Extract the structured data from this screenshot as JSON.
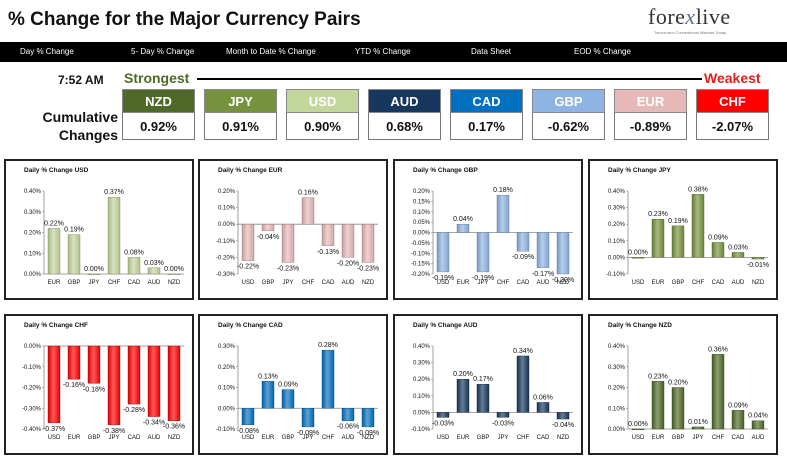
{
  "header": {
    "title": "% Change for the Major Currency Pairs",
    "logo": {
      "text_left": "fore",
      "text_x": "x",
      "text_right": "live",
      "tagline": "Tomorrow's Conventional Wisdom Today"
    }
  },
  "nav": [
    {
      "label": "Day % Change",
      "active": true
    },
    {
      "label": "5- Day % Change",
      "active": false
    },
    {
      "label": "Month to Date % Change",
      "active": false
    },
    {
      "label": "YTD % Change",
      "active": false
    },
    {
      "label": "Data Sheet",
      "active": false
    },
    {
      "label": "EOD % Change",
      "active": false
    }
  ],
  "time": "7:52 AM",
  "strongest_label": "Strongest",
  "weakest_label": "Weakest",
  "cumulative_label_1": "Cumulative",
  "cumulative_label_2": "Changes",
  "currencies": [
    {
      "code": "NZD",
      "value": "0.92%",
      "color": "#4f6a28"
    },
    {
      "code": "JPY",
      "value": "0.91%",
      "color": "#76923c"
    },
    {
      "code": "USD",
      "value": "0.90%",
      "color": "#c3d69b"
    },
    {
      "code": "AUD",
      "value": "0.68%",
      "color": "#17375e"
    },
    {
      "code": "CAD",
      "value": "0.17%",
      "color": "#0070c0"
    },
    {
      "code": "GBP",
      "value": "-0.62%",
      "color": "#8eb4e3"
    },
    {
      "code": "EUR",
      "value": "-0.89%",
      "color": "#e6b9b8"
    },
    {
      "code": "CHF",
      "value": "-2.07%",
      "color": "#ff0000"
    }
  ],
  "chart_data": [
    {
      "type": "bar",
      "title": "Daily % Change USD",
      "categories": [
        "EUR",
        "GBP",
        "JPY",
        "CHF",
        "CAD",
        "AUD",
        "NZD"
      ],
      "values": [
        0.22,
        0.19,
        0.0,
        0.37,
        0.08,
        0.03,
        0.0
      ],
      "labels": [
        "0.22%",
        "0.19%",
        "0.00%",
        "0.37%",
        "0.08%",
        "0.03%",
        "0.00%"
      ],
      "ylim": [
        0,
        0.4
      ],
      "ticks": [
        "0.40%",
        "0.30%",
        "0.20%",
        "0.10%",
        "0.00%"
      ],
      "color": "#c3d69b"
    },
    {
      "type": "bar",
      "title": "Daily % Change EUR",
      "categories": [
        "USD",
        "GBP",
        "JPY",
        "CHF",
        "CAD",
        "AUD",
        "NZD"
      ],
      "values": [
        -0.22,
        -0.04,
        -0.23,
        0.16,
        -0.13,
        -0.2,
        -0.23
      ],
      "labels": [
        "-0.22%",
        "-0.04%",
        "-0.23%",
        "0.16%",
        "-0.13%",
        "-0.20%",
        "-0.23%"
      ],
      "ylim": [
        -0.3,
        0.2
      ],
      "ticks": [
        "0.20%",
        "0.10%",
        "0.00%",
        "-0.10%",
        "-0.20%",
        "-0.30%"
      ],
      "color": "#e6b9b8"
    },
    {
      "type": "bar",
      "title": "Daily % Change GBP",
      "categories": [
        "USD",
        "EUR",
        "JPY",
        "CHF",
        "CAD",
        "AUD",
        "NZD"
      ],
      "values": [
        -0.19,
        0.04,
        -0.19,
        0.18,
        -0.09,
        -0.17,
        -0.2
      ],
      "labels": [
        "-0.19%",
        "0.04%",
        "-0.19%",
        "0.18%",
        "-0.09%",
        "-0.17%",
        "-0.20%"
      ],
      "ylim": [
        -0.2,
        0.2
      ],
      "ticks": [
        "0.20%",
        "0.15%",
        "0.10%",
        "0.05%",
        "0.00%",
        "-0.05%",
        "-0.10%",
        "-0.15%",
        "-0.20%"
      ],
      "color": "#8eb4e3"
    },
    {
      "type": "bar",
      "title": "Daily % Change JPY",
      "categories": [
        "USD",
        "EUR",
        "GBP",
        "CHF",
        "CAD",
        "AUD",
        "NZD"
      ],
      "values": [
        0.0,
        0.23,
        0.19,
        0.38,
        0.09,
        0.03,
        -0.01
      ],
      "labels": [
        "0.00%",
        "0.23%",
        "0.19%",
        "0.38%",
        "0.09%",
        "0.03%",
        "-0.01%"
      ],
      "ylim": [
        -0.1,
        0.4
      ],
      "ticks": [
        "0.40%",
        "0.30%",
        "0.20%",
        "0.10%",
        "0.00%",
        "-0.10%"
      ],
      "color": "#76923c"
    },
    {
      "type": "bar",
      "title": "Daily % Change CHF",
      "categories": [
        "USD",
        "EUR",
        "GBP",
        "JPY",
        "CAD",
        "AUD",
        "NZD"
      ],
      "values": [
        -0.37,
        -0.16,
        -0.18,
        -0.38,
        -0.28,
        -0.34,
        -0.36
      ],
      "labels": [
        "-0.37%",
        "-0.16%",
        "-0.18%",
        "-0.38%",
        "-0.28%",
        "-0.34%",
        "-0.36%"
      ],
      "ylim": [
        -0.4,
        0
      ],
      "ticks": [
        "0.00%",
        "-0.10%",
        "-0.20%",
        "-0.30%",
        "-0.40%"
      ],
      "color": "#ff0000"
    },
    {
      "type": "bar",
      "title": "Daily % Change CAD",
      "categories": [
        "USD",
        "EUR",
        "GBP",
        "JPY",
        "CHF",
        "AUD",
        "NZD"
      ],
      "values": [
        -0.08,
        0.13,
        0.09,
        -0.09,
        0.28,
        -0.06,
        -0.09
      ],
      "labels": [
        "-0.08%",
        "0.13%",
        "0.09%",
        "-0.09%",
        "0.28%",
        "-0.06%",
        "-0.09%"
      ],
      "ylim": [
        -0.1,
        0.3
      ],
      "ticks": [
        "0.30%",
        "0.20%",
        "0.10%",
        "0.00%",
        "-0.10%"
      ],
      "color": "#0070c0"
    },
    {
      "type": "bar",
      "title": "Daily % Change AUD",
      "categories": [
        "USD",
        "EUR",
        "GBP",
        "JPY",
        "CHF",
        "CAD",
        "NZD"
      ],
      "values": [
        -0.03,
        0.2,
        0.17,
        -0.03,
        0.34,
        0.06,
        -0.04
      ],
      "labels": [
        "-0.03%",
        "0.20%",
        "0.17%",
        "-0.03%",
        "0.34%",
        "0.06%",
        "-0.04%"
      ],
      "ylim": [
        -0.1,
        0.4
      ],
      "ticks": [
        "0.40%",
        "0.30%",
        "0.20%",
        "0.10%",
        "0.00%",
        "-0.10%"
      ],
      "color": "#17375e"
    },
    {
      "type": "bar",
      "title": "Daily % Change NZD",
      "categories": [
        "USD",
        "EUR",
        "GBP",
        "JPY",
        "CHF",
        "CAD",
        "AUD"
      ],
      "values": [
        0.0,
        0.23,
        0.2,
        0.01,
        0.36,
        0.09,
        0.04
      ],
      "labels": [
        "0.00%",
        "0.23%",
        "0.20%",
        "0.01%",
        "0.36%",
        "0.09%",
        "0.04%"
      ],
      "ylim": [
        0,
        0.4
      ],
      "ticks": [
        "0.40%",
        "0.30%",
        "0.20%",
        "0.10%",
        "0.00%"
      ],
      "color": "#4f6a28"
    }
  ]
}
